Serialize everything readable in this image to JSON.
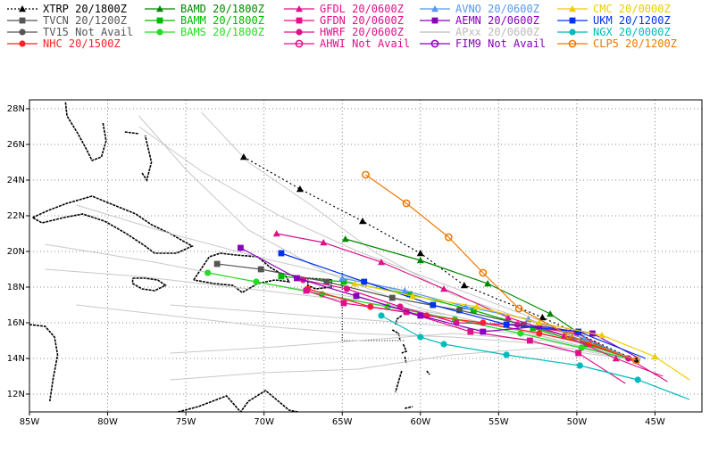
{
  "legend": [
    {
      "name": "XTRP 20/1800Z",
      "color": "#000000",
      "marker": "triangle",
      "dotted": true
    },
    {
      "name": "TVCN 20/1200Z",
      "color": "#555555",
      "marker": "square"
    },
    {
      "name": "TV15 Not Avail",
      "color": "#555555",
      "marker": "circle"
    },
    {
      "name": "NHC 20/1500Z",
      "color": "#ff2222",
      "marker": "circle"
    },
    {
      "name": "BAMD 20/1800Z",
      "color": "#008800",
      "marker": "triangle"
    },
    {
      "name": "BAMM 20/1800Z",
      "color": "#00bb00",
      "marker": "square"
    },
    {
      "name": "BAMS 20/1800Z",
      "color": "#22dd22",
      "marker": "circle"
    },
    {
      "name": "GFDL 20/0600Z",
      "color": "#e0108a",
      "marker": "triangle"
    },
    {
      "name": "GFDN 20/0600Z",
      "color": "#e0108a",
      "marker": "square"
    },
    {
      "name": "HWRF 20/0600Z",
      "color": "#e0108a",
      "marker": "circle"
    },
    {
      "name": "AHWI Not Avail",
      "color": "#e0108a",
      "marker": "ring"
    },
    {
      "name": "AVNO 20/0600Z",
      "color": "#5599ee",
      "marker": "triangle"
    },
    {
      "name": "AEMN 20/0600Z",
      "color": "#8800bb",
      "marker": "square"
    },
    {
      "name": "APxx 20/0600Z",
      "color": "#bbbbbb",
      "marker": "none"
    },
    {
      "name": "FIM9 Not Avail",
      "color": "#8800bb",
      "marker": "ring"
    },
    {
      "name": "CMC 20/0000Z",
      "color": "#eecc00",
      "marker": "triangle"
    },
    {
      "name": "UKM 20/1200Z",
      "color": "#0033ee",
      "marker": "square"
    },
    {
      "name": "NGX 20/0000Z",
      "color": "#00bbbb",
      "marker": "circle"
    },
    {
      "name": "CLP5 20/1200Z",
      "color": "#ee7700",
      "marker": "ring"
    }
  ],
  "chart_data": {
    "type": "line",
    "map": "tropical-cyclone-track-guidance",
    "xlim": [
      -85,
      -42
    ],
    "ylim": [
      11,
      28.5
    ],
    "x_ticks": [
      -85,
      -80,
      -75,
      -70,
      -65,
      -60,
      -55,
      -50,
      -45
    ],
    "x_tick_labels": [
      "85W",
      "80W",
      "75W",
      "70W",
      "65W",
      "60W",
      "55W",
      "50W",
      "45W"
    ],
    "y_ticks": [
      12,
      14,
      16,
      18,
      20,
      22,
      24,
      26,
      28
    ],
    "y_tick_labels": [
      "12N",
      "14N",
      "16N",
      "18N",
      "20N",
      "22N",
      "24N",
      "26N",
      "28N"
    ],
    "grid": true,
    "series": [
      {
        "name": "XTRP 20/1800Z",
        "color": "#000000",
        "marker": "triangle",
        "dotted": true,
        "points": [
          [
            -46.2,
            13.9
          ],
          [
            -52.2,
            16.3
          ],
          [
            -57.2,
            18.1
          ],
          [
            -60.0,
            19.9
          ],
          [
            -63.7,
            21.7
          ],
          [
            -67.7,
            23.5
          ],
          [
            -71.3,
            25.3
          ]
        ]
      },
      {
        "name": "BAMD 20/1800Z",
        "color": "#008800",
        "marker": "triangle",
        "points": [
          [
            -46.2,
            13.9
          ],
          [
            -48.8,
            14.8
          ],
          [
            -51.7,
            16.5
          ],
          [
            -55.7,
            18.2
          ],
          [
            -60.0,
            19.5
          ],
          [
            -64.8,
            20.7
          ]
        ]
      },
      {
        "name": "BAMM 20/1800Z",
        "color": "#00bb00",
        "marker": "square",
        "points": [
          [
            -46.2,
            13.9
          ],
          [
            -49.4,
            14.8
          ],
          [
            -52.8,
            15.7
          ],
          [
            -56.6,
            16.7
          ],
          [
            -60.7,
            17.6
          ],
          [
            -64.9,
            18.3
          ],
          [
            -68.9,
            18.6
          ]
        ]
      },
      {
        "name": "BAMS 20/1800Z",
        "color": "#22dd22",
        "marker": "circle",
        "points": [
          [
            -46.2,
            13.9
          ],
          [
            -49.7,
            14.6
          ],
          [
            -53.6,
            15.4
          ],
          [
            -57.8,
            16.2
          ],
          [
            -62.1,
            16.9
          ],
          [
            -66.3,
            17.6
          ],
          [
            -70.5,
            18.3
          ],
          [
            -73.6,
            18.8
          ]
        ]
      },
      {
        "name": "TVCN 20/1200Z",
        "color": "#555555",
        "marker": "square",
        "points": [
          [
            -46.2,
            13.9
          ],
          [
            -49.6,
            15.0
          ],
          [
            -53.4,
            15.9
          ],
          [
            -57.5,
            16.7
          ],
          [
            -61.8,
            17.4
          ],
          [
            -66.0,
            18.3
          ],
          [
            -70.2,
            19.0
          ],
          [
            -73.0,
            19.3
          ]
        ]
      },
      {
        "name": "NHC 20/1500Z",
        "color": "#ff2222",
        "marker": "circle",
        "points": [
          [
            -46.2,
            13.9
          ],
          [
            -49.2,
            14.8
          ],
          [
            -52.4,
            15.4
          ],
          [
            -56.0,
            16.0
          ],
          [
            -59.6,
            16.4
          ],
          [
            -63.2,
            16.9
          ],
          [
            -67.2,
            17.9
          ]
        ]
      },
      {
        "name": "GFDL 20/0600Z",
        "color": "#e0108a",
        "marker": "triangle",
        "points": [
          [
            -44.5,
            13.0
          ],
          [
            -47.5,
            14.0
          ],
          [
            -50.8,
            15.3
          ],
          [
            -54.4,
            16.3
          ],
          [
            -58.5,
            17.9
          ],
          [
            -62.5,
            19.4
          ],
          [
            -66.2,
            20.5
          ],
          [
            -69.2,
            21.0
          ]
        ]
      },
      {
        "name": "GFDN 20/0600Z",
        "color": "#e0108a",
        "marker": "square",
        "points": [
          [
            -46.9,
            12.6
          ],
          [
            -49.9,
            14.3
          ],
          [
            -53.0,
            15.0
          ],
          [
            -56.8,
            15.5
          ],
          [
            -60.9,
            16.6
          ],
          [
            -64.9,
            17.1
          ],
          [
            -67.3,
            17.8
          ]
        ]
      },
      {
        "name": "HWRF 20/0600Z",
        "color": "#e0108a",
        "marker": "circle",
        "points": [
          [
            -44.2,
            12.7
          ],
          [
            -46.7,
            14.0
          ],
          [
            -50.0,
            15.4
          ],
          [
            -53.8,
            15.9
          ],
          [
            -57.7,
            16.0
          ],
          [
            -61.3,
            16.9
          ],
          [
            -64.7,
            17.9
          ],
          [
            -67.5,
            18.4
          ]
        ]
      },
      {
        "name": "AVNO 20/0600Z",
        "color": "#5599ee",
        "marker": "triangle",
        "points": [
          [
            -46.2,
            13.9
          ],
          [
            -49.5,
            15.1
          ],
          [
            -53.1,
            16.2
          ],
          [
            -57.1,
            16.9
          ],
          [
            -61.0,
            17.8
          ],
          [
            -65.0,
            18.5
          ]
        ]
      },
      {
        "name": "AEMN 20/0600Z",
        "color": "#8800bb",
        "marker": "square",
        "points": [
          [
            -46.0,
            14.0
          ],
          [
            -49.0,
            15.4
          ],
          [
            -52.4,
            15.8
          ],
          [
            -56.0,
            15.5
          ],
          [
            -60.0,
            16.4
          ],
          [
            -64.1,
            17.5
          ],
          [
            -67.9,
            18.5
          ],
          [
            -71.5,
            20.2
          ]
        ]
      },
      {
        "name": "UKM 20/1200Z",
        "color": "#0033ee",
        "marker": "square",
        "points": [
          [
            -45.6,
            14.0
          ],
          [
            -49.9,
            15.5
          ],
          [
            -54.5,
            15.9
          ],
          [
            -59.2,
            17.0
          ],
          [
            -63.6,
            18.3
          ],
          [
            -68.9,
            19.9
          ]
        ]
      },
      {
        "name": "NGX 20/0000Z",
        "color": "#00bbbb",
        "marker": "circle",
        "points": [
          [
            -42.8,
            11.7
          ],
          [
            -46.1,
            12.8
          ],
          [
            -49.8,
            13.6
          ],
          [
            -54.5,
            14.2
          ],
          [
            -58.5,
            14.8
          ],
          [
            -60.0,
            15.2
          ],
          [
            -62.5,
            16.4
          ]
        ]
      },
      {
        "name": "CMC 20/0000Z",
        "color": "#eecc00",
        "marker": "triangle",
        "points": [
          [
            -42.8,
            12.8
          ],
          [
            -45.0,
            14.1
          ],
          [
            -48.4,
            15.3
          ],
          [
            -52.4,
            16.0
          ],
          [
            -56.4,
            16.9
          ],
          [
            -60.5,
            17.5
          ],
          [
            -64.2,
            18.2
          ]
        ]
      },
      {
        "name": "CLP5 20/1200Z",
        "color": "#ee7700",
        "marker": "ring",
        "points": [
          [
            -46.2,
            13.9
          ],
          [
            -50.5,
            15.3
          ],
          [
            -53.7,
            16.8
          ],
          [
            -56.0,
            18.8
          ],
          [
            -58.2,
            20.8
          ],
          [
            -60.9,
            22.7
          ],
          [
            -63.5,
            24.3
          ]
        ]
      }
    ],
    "ensemble": [
      [
        [
          -46.2,
          13.9
        ],
        [
          -52,
          15.2
        ],
        [
          -58,
          15.8
        ],
        [
          -64,
          16.2
        ],
        [
          -70,
          16.6
        ],
        [
          -76,
          17.0
        ]
      ],
      [
        [
          -46.2,
          13.9
        ],
        [
          -52,
          15.0
        ],
        [
          -58,
          15.4
        ],
        [
          -64,
          15.0
        ],
        [
          -70,
          14.6
        ],
        [
          -76,
          14.3
        ]
      ],
      [
        [
          -46.2,
          13.9
        ],
        [
          -52,
          15.6
        ],
        [
          -58,
          17.0
        ],
        [
          -64,
          18.4
        ],
        [
          -70,
          19.6
        ],
        [
          -76,
          21.0
        ],
        [
          -82,
          22.6
        ]
      ],
      [
        [
          -46.2,
          13.9
        ],
        [
          -52,
          16.0
        ],
        [
          -58,
          18.0
        ],
        [
          -64,
          20.0
        ],
        [
          -69,
          22.0
        ],
        [
          -74,
          24.5
        ],
        [
          -78,
          27.0
        ]
      ],
      [
        [
          -46.2,
          13.9
        ],
        [
          -52,
          15.4
        ],
        [
          -58,
          16.2
        ],
        [
          -64,
          17.4
        ],
        [
          -70,
          18.2
        ],
        [
          -77,
          19.4
        ],
        [
          -84,
          20.4
        ]
      ],
      [
        [
          -46.2,
          13.9
        ],
        [
          -53,
          15.4
        ],
        [
          -60,
          16.8
        ],
        [
          -66,
          18.8
        ],
        [
          -71,
          21.2
        ],
        [
          -75,
          24.6
        ],
        [
          -78,
          27.6
        ]
      ],
      [
        [
          -46.2,
          13.9
        ],
        [
          -52,
          14.8
        ],
        [
          -58,
          15.2
        ],
        [
          -64,
          15.4
        ],
        [
          -70,
          15.8
        ],
        [
          -76,
          16.4
        ],
        [
          -82,
          17.0
        ]
      ],
      [
        [
          -46.2,
          13.9
        ],
        [
          -52,
          15.8
        ],
        [
          -58,
          17.6
        ],
        [
          -63,
          20.0
        ],
        [
          -67,
          22.6
        ],
        [
          -71,
          25.0
        ],
        [
          -74,
          27.8
        ]
      ],
      [
        [
          -46.2,
          13.9
        ],
        [
          -52,
          14.6
        ],
        [
          -58,
          14.2
        ],
        [
          -64,
          13.4
        ],
        [
          -70,
          13.2
        ],
        [
          -76,
          12.8
        ]
      ],
      [
        [
          -46.2,
          13.9
        ],
        [
          -52,
          15.2
        ],
        [
          -58,
          16.4
        ],
        [
          -64,
          17.2
        ],
        [
          -70,
          17.8
        ],
        [
          -78,
          18.6
        ],
        [
          -84,
          19.0
        ]
      ]
    ]
  }
}
